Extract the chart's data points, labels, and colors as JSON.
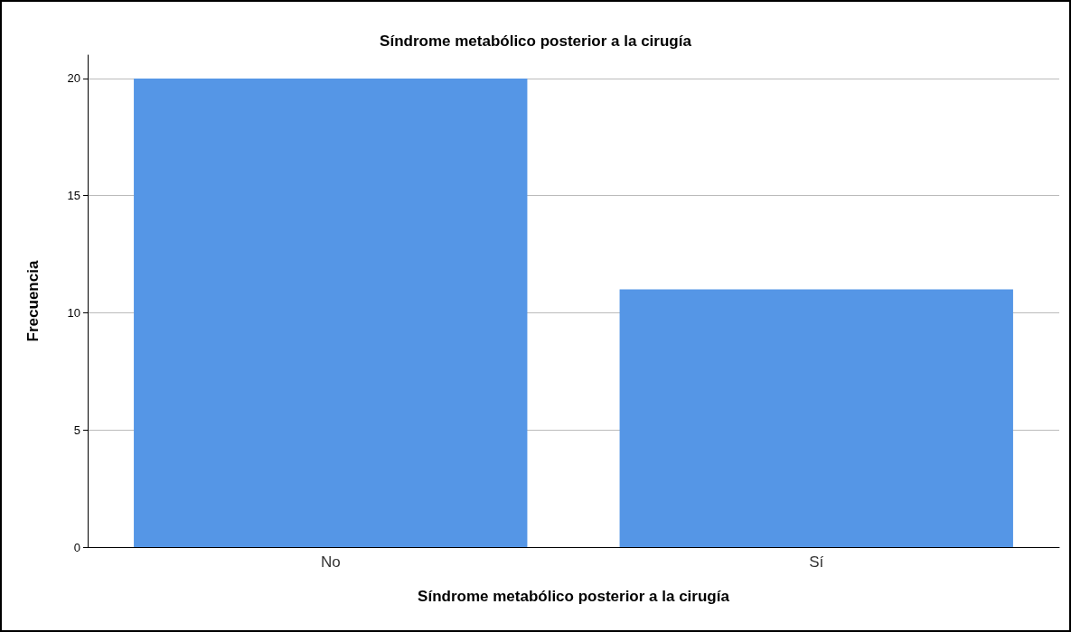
{
  "chart_data": {
    "type": "bar",
    "title": "Síndrome metabólico posterior a la cirugía",
    "xlabel": "Síndrome metabólico posterior a la cirugía",
    "ylabel": "Frecuencia",
    "categories": [
      "No",
      "Sí"
    ],
    "values": [
      20,
      11
    ],
    "color": "#5596e6",
    "ylim": [
      0,
      21
    ],
    "yticks": [
      0,
      5,
      10,
      15,
      20
    ],
    "grid": "y"
  }
}
